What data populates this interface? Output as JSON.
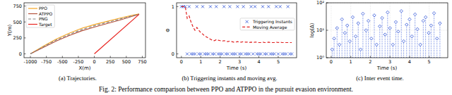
{
  "caption": "Fig. 2: Performance comparison between PPO and ATPPO in the pursuit evasion environment.",
  "chart_data": [
    {
      "type": "line",
      "title": "(a) Trajectories.",
      "x_label": "X(m)",
      "y_label": "Y(m)",
      "xlim": [
        -1100,
        800
      ],
      "ylim": [
        -60,
        800
      ],
      "xticks": [
        -1000,
        -750,
        -500,
        -250,
        0,
        250,
        500,
        750
      ],
      "yticks": [
        0,
        250,
        500,
        750
      ],
      "legend": "upper left",
      "grid": false,
      "series": [
        {
          "name": "PPO",
          "color": "#f5a623",
          "line_style": "solid",
          "x": [
            -1000,
            -800,
            -600,
            -400,
            -200,
            0,
            200,
            400,
            600,
            700
          ],
          "values": [
            0,
            120,
            230,
            320,
            400,
            460,
            510,
            560,
            605,
            625
          ]
        },
        {
          "name": "ATPPO",
          "color": "#b5523b",
          "line_style": "solid",
          "x": [
            -1000,
            -800,
            -600,
            -400,
            -200,
            0,
            200,
            400,
            600,
            700
          ],
          "values": [
            0,
            100,
            200,
            285,
            360,
            420,
            475,
            530,
            590,
            620
          ]
        },
        {
          "name": "PNG",
          "color": "#888888",
          "line_style": "dashed",
          "x": [
            -1000,
            -800,
            -600,
            -400,
            -200,
            0,
            200,
            400,
            600,
            700
          ],
          "values": [
            0,
            110,
            215,
            300,
            380,
            440,
            492,
            545,
            598,
            622
          ]
        },
        {
          "name": "Target",
          "color": "#e8231f",
          "line_style": "solid",
          "x": [
            0,
            700
          ],
          "values": [
            0,
            620
          ]
        }
      ]
    },
    {
      "type": "line",
      "title": "(b) Triggering instants and moving avg.",
      "x_label": "Time (s)",
      "y_label": "Φ",
      "x": [
        0,
        0.1,
        0.2,
        0.3,
        0.4,
        0.5,
        0.6,
        0.7,
        0.8,
        0.9,
        1.0,
        1.1,
        1.2,
        1.3,
        1.4,
        1.5,
        1.6,
        1.7,
        1.8,
        1.9,
        2.0,
        2.1,
        2.2,
        2.3,
        2.4,
        2.5,
        2.6,
        2.7,
        2.8,
        2.9,
        3.0,
        3.1,
        3.2,
        3.3,
        3.4,
        3.5,
        3.6,
        3.7,
        3.8,
        3.9,
        4.0,
        4.1,
        4.2,
        4.3,
        4.4,
        4.5,
        4.6,
        4.7,
        4.8,
        4.9,
        5.0,
        5.1,
        5.2,
        5.3,
        5.4,
        5.5,
        5.6,
        5.7
      ],
      "xlim": [
        -0.25,
        5.95
      ],
      "ylim": [
        -0.08,
        1.08
      ],
      "xticks": [
        0,
        1,
        2,
        3,
        4,
        5
      ],
      "yticks": [
        0,
        1
      ],
      "legend": "right",
      "grid": false,
      "series": [
        {
          "name": "Triggering Instants",
          "type": "scatter",
          "marker": "x",
          "color": "#2a4fd6",
          "values": [
            1,
            1,
            1,
            0,
            1,
            0,
            0,
            0,
            1,
            0,
            0,
            1,
            0,
            0,
            0,
            1,
            0,
            0,
            1,
            0,
            0,
            0,
            1,
            0,
            0,
            1,
            0,
            0,
            0,
            1,
            0,
            0,
            1,
            0,
            0,
            0,
            1,
            0,
            1,
            0,
            0,
            0,
            1,
            0,
            0,
            1,
            0,
            0,
            0,
            1,
            0,
            1,
            0,
            0,
            0,
            1,
            0,
            0
          ]
        },
        {
          "name": "Moving Average",
          "type": "line",
          "line_style": "dashed",
          "color": "#e02020",
          "values": [
            1,
            1,
            1,
            0.75,
            0.8,
            0.67,
            0.57,
            0.5,
            0.56,
            0.5,
            0.45,
            0.42,
            0.38,
            0.36,
            0.33,
            0.31,
            0.29,
            0.28,
            0.3,
            0.29,
            0.28,
            0.27,
            0.28,
            0.27,
            0.26,
            0.27,
            0.26,
            0.25,
            0.25,
            0.26,
            0.25,
            0.25,
            0.26,
            0.25,
            0.25,
            0.24,
            0.25,
            0.24,
            0.25,
            0.25,
            0.24,
            0.24,
            0.25,
            0.24,
            0.24,
            0.25,
            0.24,
            0.24,
            0.24,
            0.25,
            0.24,
            0.25,
            0.24,
            0.24,
            0.24,
            0.24,
            0.24,
            0.24
          ]
        }
      ]
    },
    {
      "type": "stem",
      "title": "(c) Inter event time.",
      "x_label": "Time (s)",
      "y_label": "log(Δ)",
      "log": "y",
      "grid": true,
      "xlim": [
        -0.25,
        5.95
      ],
      "ylim": [
        1,
        100
      ],
      "xticks": [
        0,
        1,
        2,
        3,
        4,
        5
      ],
      "yticks": [
        {
          "value": 1,
          "label": "10⁰"
        },
        {
          "value": 10,
          "label": "10¹"
        },
        {
          "value": 100,
          "label": "10²"
        }
      ],
      "series": [
        {
          "color": "#2a4fd6",
          "marker": "diamond",
          "line_style": "dotted",
          "x": [
            0.05,
            0.15,
            0.3,
            0.42,
            0.55,
            0.7,
            0.82,
            0.95,
            1.1,
            1.25,
            1.38,
            1.5,
            1.62,
            1.78,
            1.9,
            2.05,
            2.2,
            2.32,
            2.48,
            2.6,
            2.75,
            2.88,
            3.0,
            3.15,
            3.3,
            3.42,
            3.58,
            3.7,
            3.85,
            4.0,
            4.12,
            4.28,
            4.4,
            4.55,
            4.7,
            4.82,
            4.98,
            5.1,
            5.25,
            5.4,
            5.55
          ],
          "values": [
            2,
            5,
            12,
            3,
            25,
            8,
            15,
            4,
            30,
            6,
            18,
            2,
            40,
            10,
            22,
            5,
            35,
            3,
            14,
            28,
            7,
            45,
            12,
            3,
            20,
            9,
            50,
            4,
            16,
            25,
            6,
            38,
            11,
            3,
            22,
            30,
            8,
            15,
            42,
            5,
            18
          ]
        }
      ]
    }
  ]
}
